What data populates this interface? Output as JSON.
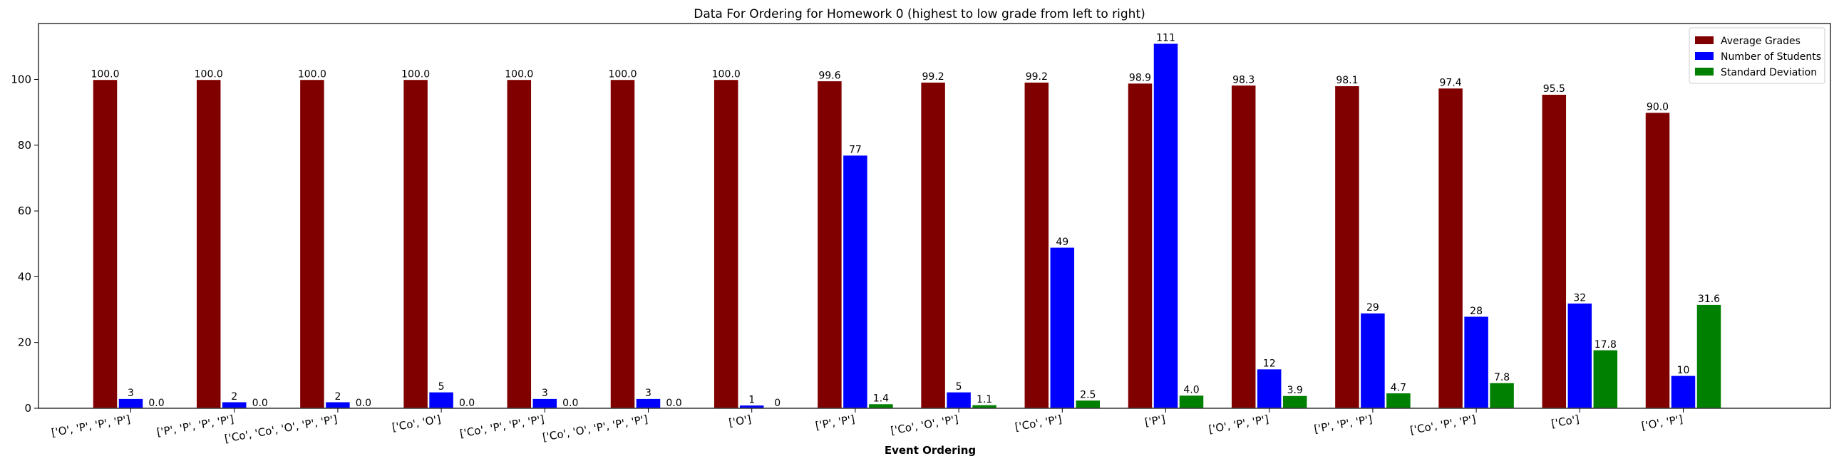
{
  "chart_data": {
    "type": "bar",
    "title": "Data For Ordering for Homework 0 (highest to low grade from left to right)",
    "xlabel": "Event Ordering",
    "ylabel": "",
    "ylim": [
      0,
      117
    ],
    "yticks": [
      0,
      20,
      40,
      60,
      80,
      100
    ],
    "grid": false,
    "legend_position": "top-right",
    "categories": [
      "['O', 'P', 'P', 'P']",
      "['P', 'P', 'P', 'P']",
      "['Co', 'Co', 'O', 'P', 'P']",
      "['Co', 'O']",
      "['Co', 'P', 'P', 'P']",
      "['Co', 'O', 'P', 'P', 'P']",
      "['O']",
      "['P', 'P']",
      "['Co', 'O', 'P']",
      "['Co', 'P']",
      "['P']",
      "['O', 'P', 'P']",
      "['P', 'P', 'P']",
      "['Co', 'P', 'P']",
      "['Co']",
      "['O', 'P']"
    ],
    "series": [
      {
        "name": "Average Grades",
        "color": "#800000",
        "values": [
          100.0,
          100.0,
          100.0,
          100.0,
          100.0,
          100.0,
          100.0,
          99.6,
          99.2,
          99.2,
          98.9,
          98.3,
          98.1,
          97.4,
          95.5,
          90.0
        ],
        "labels": [
          "100.0",
          "100.0",
          "100.0",
          "100.0",
          "100.0",
          "100.0",
          "100.0",
          "99.6",
          "99.2",
          "99.2",
          "98.9",
          "98.3",
          "98.1",
          "97.4",
          "95.5",
          "90.0"
        ]
      },
      {
        "name": "Number of Students",
        "color": "#0000ff",
        "values": [
          3,
          2,
          2,
          5,
          3,
          3,
          1,
          77,
          5,
          49,
          111,
          12,
          29,
          28,
          32,
          10
        ],
        "labels": [
          "3",
          "2",
          "2",
          "5",
          "3",
          "3",
          "1",
          "77",
          "5",
          "49",
          "111",
          "12",
          "29",
          "28",
          "32",
          "10"
        ]
      },
      {
        "name": "Standard Deviation",
        "color": "#008000",
        "values": [
          0.0,
          0.0,
          0.0,
          0.0,
          0.0,
          0.0,
          0,
          1.4,
          1.1,
          2.5,
          4.0,
          3.9,
          4.7,
          7.8,
          17.8,
          31.6
        ],
        "labels": [
          "0.0",
          "0.0",
          "0.0",
          "0.0",
          "0.0",
          "0.0",
          "0",
          "1.4",
          "1.1",
          "2.5",
          "4.0",
          "3.9",
          "4.7",
          "7.8",
          "17.8",
          "31.6"
        ]
      }
    ]
  }
}
